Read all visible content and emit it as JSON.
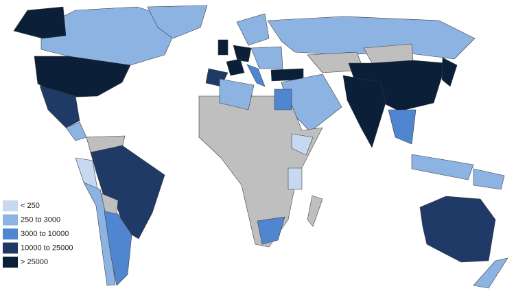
{
  "legend": {
    "items": [
      {
        "label": "< 250",
        "color": "#c6d9f1"
      },
      {
        "label": "250 to 3000",
        "color": "#8db3e2"
      },
      {
        "label": "3000 to 10000",
        "color": "#4f86cf"
      },
      {
        "label": "10000 to 25000",
        "color": "#1f3a66"
      },
      {
        "label": "> 25000",
        "color": "#0c1f38"
      }
    ]
  }
}
